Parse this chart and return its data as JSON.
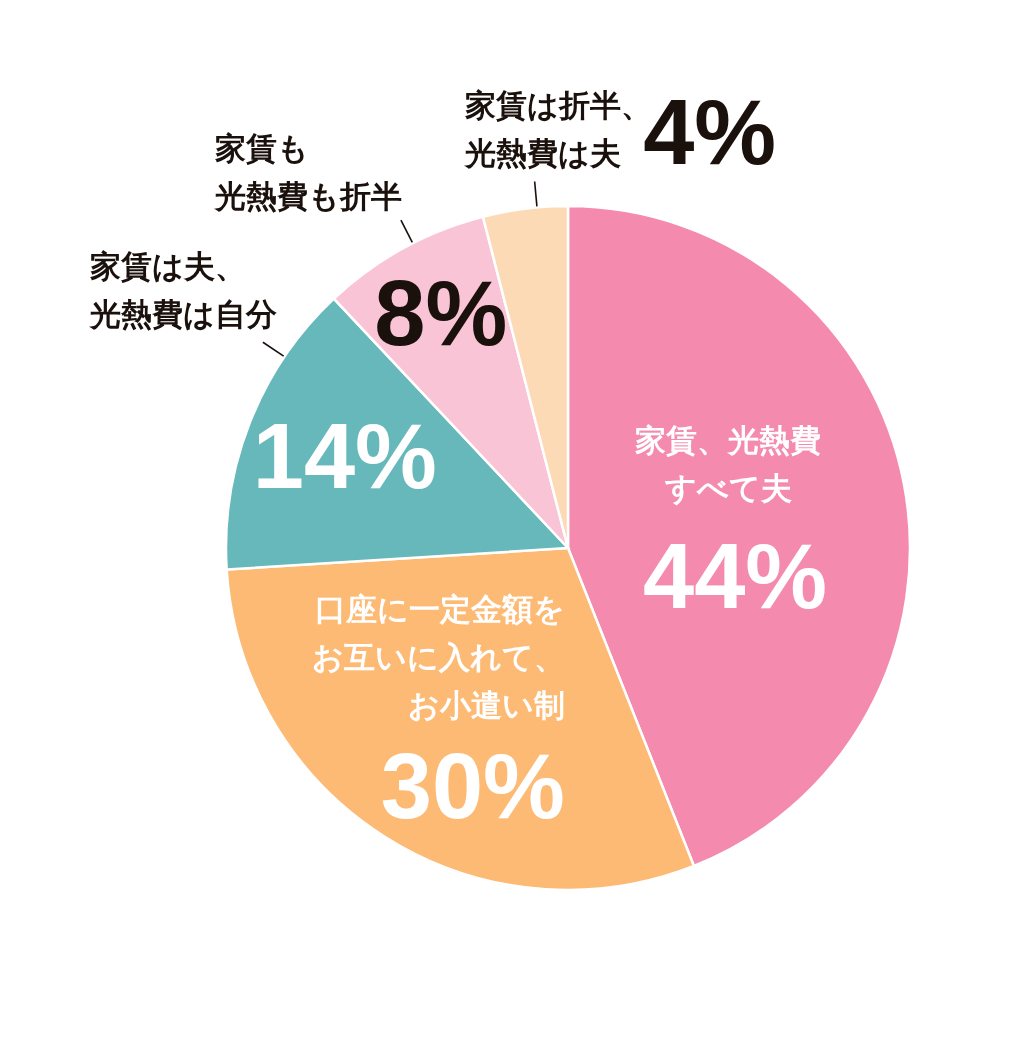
{
  "chart_data": {
    "type": "pie",
    "categories": [
      "家賃、光熱費すべて夫",
      "口座に一定金額をお互いに入れて、お小遣い制",
      "家賃は夫、光熱費は自分",
      "家賃も光熱費も折半",
      "家賃は折半、光熱費は夫"
    ],
    "values": [
      44,
      30,
      14,
      8,
      4
    ],
    "colors": [
      "#f48aae",
      "#fdba74",
      "#66b8bb",
      "#f9c5d6",
      "#fddab6"
    ],
    "value_labels": [
      "44%",
      "30%",
      "14%",
      "8%",
      "4%"
    ]
  }
}
